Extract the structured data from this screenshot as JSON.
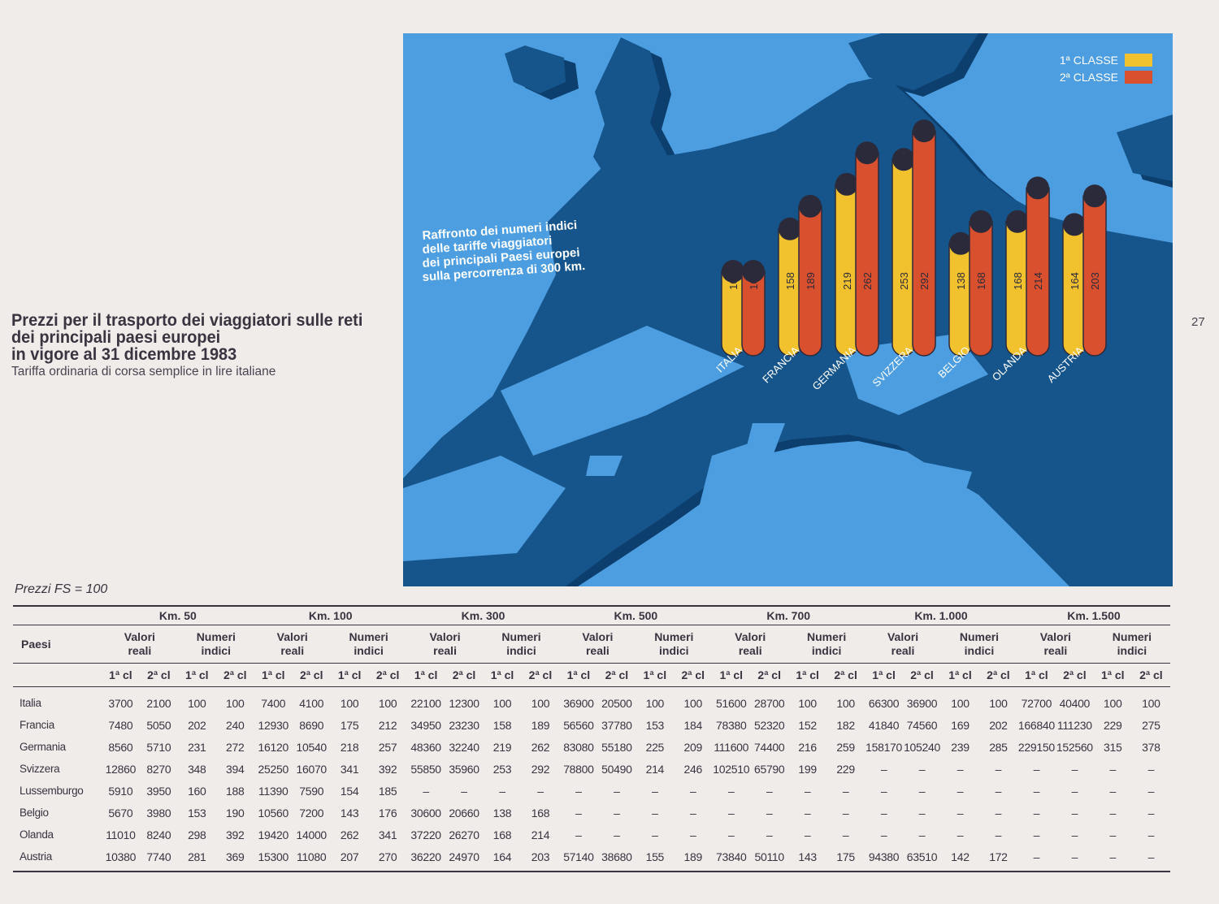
{
  "page": {
    "title_lines": [
      "Prezzi per il trasporto dei viaggiatori sulle reti",
      "dei principali paesi europei",
      "in vigore al 31 dicembre 1983"
    ],
    "subtitle": "Tariffa ordinaria di corsa semplice in lire italiane",
    "page_number": "27",
    "prezzi_note": "Prezzi FS = 100"
  },
  "colors": {
    "sea": "#4d9ee0",
    "land": "#16558c",
    "shadow": "#0d3f6e",
    "first_class": "#f2c12e",
    "second_class": "#d9502e",
    "cap": "#2b2a3a"
  },
  "chart_data": {
    "type": "bar",
    "style": "3d-cylinder-on-map",
    "title_lines": [
      "Raffronto dei numeri indici",
      "delle tariffe viaggiatori",
      "dei principali Paesi europei",
      "sulla percorrenza di 300 km."
    ],
    "legend": {
      "placement": "top-right",
      "entries": [
        "1ª CLASSE",
        "2ª CLASSE"
      ]
    },
    "categories": [
      "ITALIA",
      "FRANCIA",
      "GERMANIA",
      "SVIZZERA",
      "BELGIO",
      "OLANDA",
      "AUSTRIA"
    ],
    "series": [
      {
        "name": "1ª CLASSE",
        "values": [
          100,
          158,
          219,
          253,
          138,
          168,
          164
        ]
      },
      {
        "name": "2ª CLASSE",
        "values": [
          100,
          189,
          262,
          292,
          168,
          214,
          203
        ]
      }
    ],
    "value_labels": [
      [
        "100",
        "158",
        "219",
        "253",
        "138",
        "168",
        "164"
      ],
      [
        "100",
        "189",
        "262",
        "292",
        "168",
        "214",
        "203"
      ]
    ]
  },
  "table": {
    "paesi_label": "Paesi",
    "distances": [
      "Km. 50",
      "Km. 100",
      "Km. 300",
      "Km. 500",
      "Km. 700",
      "Km. 1.000",
      "Km. 1.500"
    ],
    "group_labels": [
      {
        "line1": "Valori",
        "line2": "reali"
      },
      {
        "line1": "Numeri",
        "line2": "indici"
      }
    ],
    "class_labels": [
      "1ª cl",
      "2ª cl"
    ],
    "rows": [
      {
        "country": "Italia",
        "values": [
          "3700",
          "2100",
          "100",
          "100",
          "7400",
          "4100",
          "100",
          "100",
          "22100",
          "12300",
          "100",
          "100",
          "36900",
          "20500",
          "100",
          "100",
          "51600",
          "28700",
          "100",
          "100",
          "66300",
          "36900",
          "100",
          "100",
          "72700",
          "40400",
          "100",
          "100"
        ]
      },
      {
        "country": "Francia",
        "values": [
          "7480",
          "5050",
          "202",
          "240",
          "12930",
          "8690",
          "175",
          "212",
          "34950",
          "23230",
          "158",
          "189",
          "56560",
          "37780",
          "153",
          "184",
          "78380",
          "52320",
          "152",
          "182",
          "41840",
          "74560",
          "169",
          "202",
          "166840",
          "111230",
          "229",
          "275"
        ]
      },
      {
        "country": "Germania",
        "values": [
          "8560",
          "5710",
          "231",
          "272",
          "16120",
          "10540",
          "218",
          "257",
          "48360",
          "32240",
          "219",
          "262",
          "83080",
          "55180",
          "225",
          "209",
          "111600",
          "74400",
          "216",
          "259",
          "158170",
          "105240",
          "239",
          "285",
          "229150",
          "152560",
          "315",
          "378"
        ]
      },
      {
        "country": "Svizzera",
        "values": [
          "12860",
          "8270",
          "348",
          "394",
          "25250",
          "16070",
          "341",
          "392",
          "55850",
          "35960",
          "253",
          "292",
          "78800",
          "50490",
          "214",
          "246",
          "102510",
          "65790",
          "199",
          "229",
          "–",
          "–",
          "–",
          "–",
          "–",
          "–",
          "–",
          "–"
        ]
      },
      {
        "country": "Lussemburgo",
        "values": [
          "5910",
          "3950",
          "160",
          "188",
          "11390",
          "7590",
          "154",
          "185",
          "–",
          "–",
          "–",
          "–",
          "–",
          "–",
          "–",
          "–",
          "–",
          "–",
          "–",
          "–",
          "–",
          "–",
          "–",
          "–",
          "–",
          "–",
          "–",
          "–"
        ]
      },
      {
        "country": "Belgio",
        "values": [
          "5670",
          "3980",
          "153",
          "190",
          "10560",
          "7200",
          "143",
          "176",
          "30600",
          "20660",
          "138",
          "168",
          "–",
          "–",
          "–",
          "–",
          "–",
          "–",
          "–",
          "–",
          "–",
          "–",
          "–",
          "–",
          "–",
          "–",
          "–",
          "–"
        ]
      },
      {
        "country": "Olanda",
        "values": [
          "11010",
          "8240",
          "298",
          "392",
          "19420",
          "14000",
          "262",
          "341",
          "37220",
          "26270",
          "168",
          "214",
          "–",
          "–",
          "–",
          "–",
          "–",
          "–",
          "–",
          "–",
          "–",
          "–",
          "–",
          "–",
          "–",
          "–",
          "–",
          "–"
        ]
      },
      {
        "country": "Austria",
        "values": [
          "10380",
          "7740",
          "281",
          "369",
          "15300",
          "11080",
          "207",
          "270",
          "36220",
          "24970",
          "164",
          "203",
          "57140",
          "38680",
          "155",
          "189",
          "73840",
          "50110",
          "143",
          "175",
          "94380",
          "63510",
          "142",
          "172",
          "–",
          "–",
          "–",
          "–"
        ]
      }
    ]
  }
}
